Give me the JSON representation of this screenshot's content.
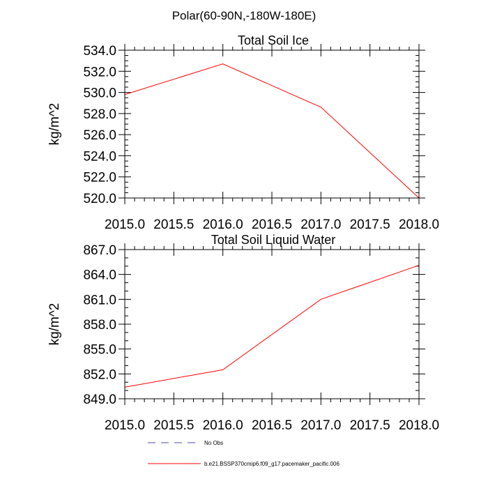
{
  "figure": {
    "suptitle": "Polar(60-90N,-180W-180E)"
  },
  "chart_data": [
    {
      "type": "line",
      "title": "Total Soil Ice",
      "xlabel": "",
      "ylabel": "kg/m^2",
      "xlim": [
        2015.0,
        2018.0
      ],
      "ylim": [
        520.0,
        534.0
      ],
      "x_ticks": [
        2015.0,
        2015.5,
        2016.0,
        2016.5,
        2017.0,
        2017.5,
        2018.0
      ],
      "x_tick_labels": [
        "2015.0",
        "2015.5",
        "2016.0",
        "2016.5",
        "2017.0",
        "2017.5",
        "2018.0"
      ],
      "y_ticks": [
        520.0,
        522.0,
        524.0,
        526.0,
        528.0,
        530.0,
        532.0,
        534.0
      ],
      "y_tick_labels": [
        "520.0",
        "522.0",
        "524.0",
        "526.0",
        "528.0",
        "530.0",
        "532.0",
        "534.0"
      ],
      "y_minor_step": 0.5,
      "x_minor_step": 0.1,
      "series": [
        {
          "name": "b.e21.BSSP370cmip6.f09_g17.pacemaker_pacific.006",
          "color": "#ff0000",
          "x": [
            2015.0,
            2016.0,
            2017.0,
            2018.0
          ],
          "y": [
            529.8,
            532.7,
            528.6,
            520.0
          ]
        }
      ]
    },
    {
      "type": "line",
      "title": "Total Soil Liquid Water",
      "xlabel": "",
      "ylabel": "kg/m^2",
      "xlim": [
        2015.0,
        2018.0
      ],
      "ylim": [
        849.0,
        867.0
      ],
      "x_ticks": [
        2015.0,
        2015.5,
        2016.0,
        2016.5,
        2017.0,
        2017.5,
        2018.0
      ],
      "x_tick_labels": [
        "2015.0",
        "2015.5",
        "2016.0",
        "2016.5",
        "2017.0",
        "2017.5",
        "2018.0"
      ],
      "y_ticks": [
        849.0,
        852.0,
        855.0,
        858.0,
        861.0,
        864.0,
        867.0
      ],
      "y_tick_labels": [
        "849.0",
        "852.0",
        "855.0",
        "858.0",
        "861.0",
        "864.0",
        "867.0"
      ],
      "y_minor_step": 1.0,
      "x_minor_step": 0.1,
      "series": [
        {
          "name": "b.e21.BSSP370cmip6.f09_g17.pacemaker_pacific.006",
          "color": "#ff0000",
          "x": [
            2015.0,
            2016.0,
            2017.0,
            2018.0
          ],
          "y": [
            850.4,
            852.5,
            861.0,
            865.1
          ]
        }
      ]
    }
  ],
  "legend": {
    "placement": "bottom-center",
    "entries": [
      {
        "label": "No Obs",
        "color": "#4a4aa8",
        "dash": "dashed"
      },
      {
        "label": "b.e21.BSSP370cmip6.f09_g17.pacemaker_pacific.006",
        "color": "#ff0000",
        "dash": "solid"
      }
    ]
  }
}
